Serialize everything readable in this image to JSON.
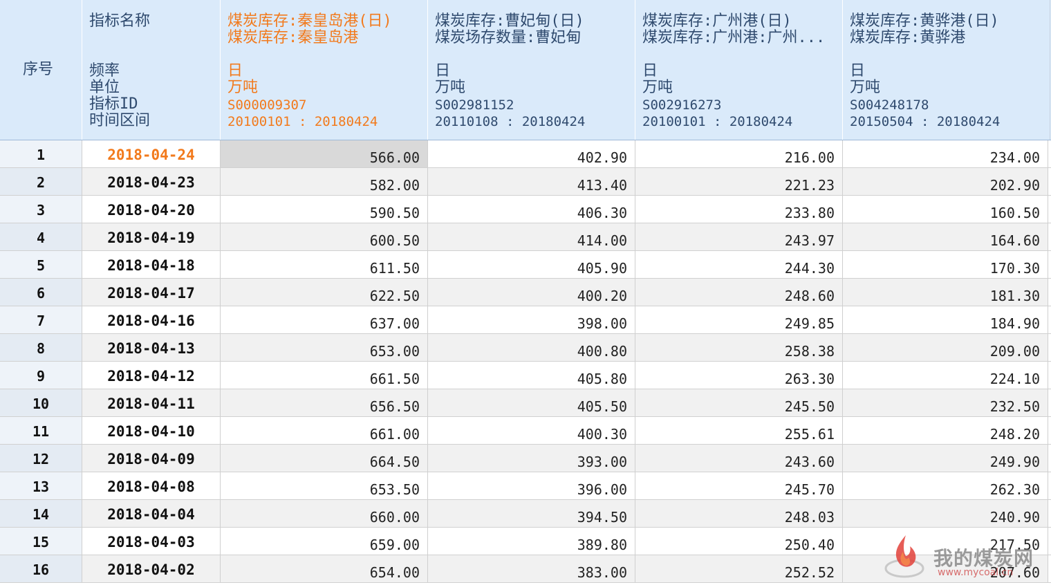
{
  "header": {
    "seq_label": "序号",
    "label_col": {
      "line1": "指标名称",
      "freq": "频率",
      "unit": "单位",
      "id": "指标ID",
      "range": "时间区间"
    },
    "columns": [
      {
        "name1": "煤炭库存:秦皇岛港(日)",
        "name2": "煤炭库存:秦皇岛港",
        "freq": "日",
        "unit": "万吨",
        "id": "S000009307",
        "range": "20100101 : 20180424"
      },
      {
        "name1": "煤炭库存:曹妃甸(日)",
        "name2": "煤炭场存数量:曹妃甸",
        "freq": "日",
        "unit": "万吨",
        "id": "S002981152",
        "range": "20110108 : 20180424"
      },
      {
        "name1": "煤炭库存:广州港(日)",
        "name2": "煤炭库存:广州港:广州...",
        "freq": "日",
        "unit": "万吨",
        "id": "S002916273",
        "range": "20100101 : 20180424"
      },
      {
        "name1": "煤炭库存:黄骅港(日)",
        "name2": "煤炭库存:黄骅港",
        "freq": "日",
        "unit": "万吨",
        "id": "S004248178",
        "range": "20150504 : 20180424"
      }
    ]
  },
  "rows": [
    {
      "seq": "1",
      "date": "2018-04-24",
      "v1": "566.00",
      "v2": "402.90",
      "v3": "216.00",
      "v4": "234.00"
    },
    {
      "seq": "2",
      "date": "2018-04-23",
      "v1": "582.00",
      "v2": "413.40",
      "v3": "221.23",
      "v4": "202.90"
    },
    {
      "seq": "3",
      "date": "2018-04-20",
      "v1": "590.50",
      "v2": "406.30",
      "v3": "233.80",
      "v4": "160.50"
    },
    {
      "seq": "4",
      "date": "2018-04-19",
      "v1": "600.50",
      "v2": "414.00",
      "v3": "243.97",
      "v4": "164.60"
    },
    {
      "seq": "5",
      "date": "2018-04-18",
      "v1": "611.50",
      "v2": "405.90",
      "v3": "244.30",
      "v4": "170.30"
    },
    {
      "seq": "6",
      "date": "2018-04-17",
      "v1": "622.50",
      "v2": "400.20",
      "v3": "248.60",
      "v4": "181.30"
    },
    {
      "seq": "7",
      "date": "2018-04-16",
      "v1": "637.00",
      "v2": "398.00",
      "v3": "249.85",
      "v4": "184.90"
    },
    {
      "seq": "8",
      "date": "2018-04-13",
      "v1": "653.00",
      "v2": "400.80",
      "v3": "258.38",
      "v4": "209.00"
    },
    {
      "seq": "9",
      "date": "2018-04-12",
      "v1": "661.50",
      "v2": "405.80",
      "v3": "263.30",
      "v4": "224.10"
    },
    {
      "seq": "10",
      "date": "2018-04-11",
      "v1": "656.50",
      "v2": "405.50",
      "v3": "245.50",
      "v4": "232.50"
    },
    {
      "seq": "11",
      "date": "2018-04-10",
      "v1": "661.00",
      "v2": "400.30",
      "v3": "255.61",
      "v4": "248.20"
    },
    {
      "seq": "12",
      "date": "2018-04-09",
      "v1": "664.50",
      "v2": "393.00",
      "v3": "243.60",
      "v4": "249.90"
    },
    {
      "seq": "13",
      "date": "2018-04-08",
      "v1": "653.50",
      "v2": "396.00",
      "v3": "245.70",
      "v4": "262.30"
    },
    {
      "seq": "14",
      "date": "2018-04-04",
      "v1": "660.00",
      "v2": "394.50",
      "v3": "248.03",
      "v4": "240.90"
    },
    {
      "seq": "15",
      "date": "2018-04-03",
      "v1": "659.00",
      "v2": "389.80",
      "v3": "250.40",
      "v4": "217.50"
    },
    {
      "seq": "16",
      "date": "2018-04-02",
      "v1": "654.00",
      "v2": "383.00",
      "v3": "252.52",
      "v4": "207.60"
    }
  ],
  "watermark": {
    "text": "我的煤炭网",
    "url": "www.mycoal.cn"
  },
  "colors": {
    "header_bg": "#daeafa",
    "highlight": "#f27a1c",
    "header_text": "#2f4a6e",
    "selected_cell": "#d9d9d9"
  }
}
